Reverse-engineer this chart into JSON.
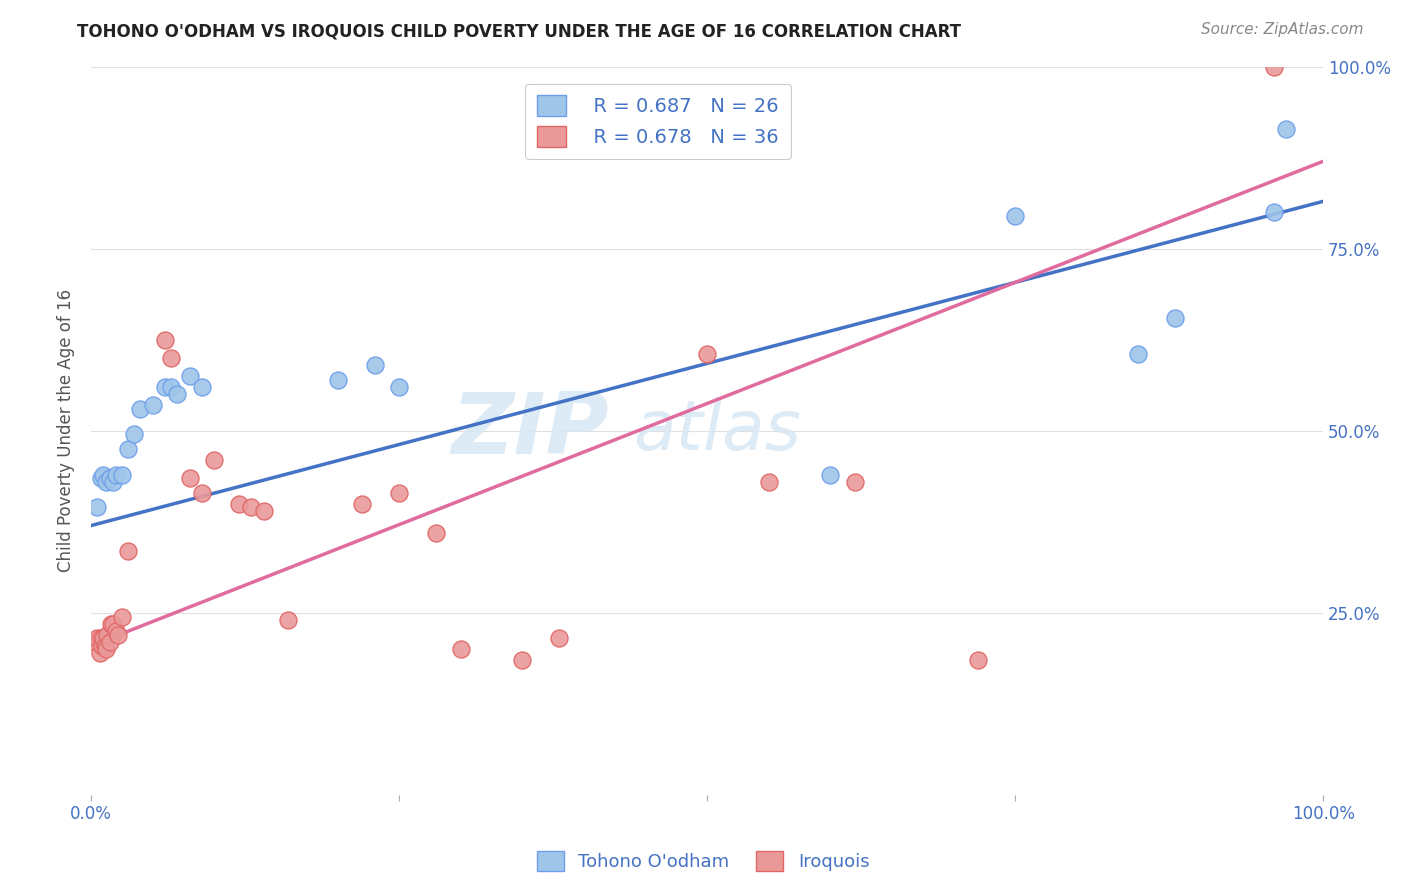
{
  "title": "TOHONO O'ODHAM VS IROQUOIS CHILD POVERTY UNDER THE AGE OF 16 CORRELATION CHART",
  "source": "Source: ZipAtlas.com",
  "ylabel": "Child Poverty Under the Age of 16",
  "xlim": [
    0,
    1
  ],
  "ylim": [
    0,
    1
  ],
  "legend_r1": "R = 0.687",
  "legend_n1": "N = 26",
  "legend_r2": "R = 0.678",
  "legend_n2": "N = 36",
  "color_blue": "#9FC5E8",
  "color_pink": "#EA9999",
  "color_blue_edge": "#6D9EEB",
  "color_pink_edge": "#E06666",
  "color_blue_line": "#4472C4",
  "color_pink_line": "#E06C9F",
  "color_text": "#4472C4",
  "watermark_text": "ZIP",
  "watermark_text2": "atlas",
  "tohono_x": [
    0.005,
    0.008,
    0.01,
    0.012,
    0.015,
    0.018,
    0.02,
    0.025,
    0.03,
    0.035,
    0.04,
    0.05,
    0.06,
    0.065,
    0.07,
    0.08,
    0.09,
    0.2,
    0.23,
    0.25,
    0.6,
    0.75,
    0.85,
    0.88,
    0.96,
    0.97
  ],
  "tohono_y": [
    0.395,
    0.435,
    0.44,
    0.43,
    0.435,
    0.43,
    0.44,
    0.44,
    0.475,
    0.495,
    0.53,
    0.535,
    0.56,
    0.56,
    0.55,
    0.575,
    0.56,
    0.57,
    0.59,
    0.56,
    0.44,
    0.795,
    0.605,
    0.655,
    0.8,
    0.915
  ],
  "iroquois_x": [
    0.003,
    0.005,
    0.007,
    0.008,
    0.009,
    0.01,
    0.011,
    0.012,
    0.013,
    0.015,
    0.016,
    0.018,
    0.02,
    0.022,
    0.025,
    0.03,
    0.06,
    0.065,
    0.08,
    0.09,
    0.1,
    0.12,
    0.13,
    0.14,
    0.16,
    0.22,
    0.25,
    0.28,
    0.3,
    0.35,
    0.38,
    0.5,
    0.55,
    0.62,
    0.72,
    0.96
  ],
  "iroquois_y": [
    0.21,
    0.215,
    0.195,
    0.215,
    0.205,
    0.215,
    0.205,
    0.2,
    0.22,
    0.21,
    0.235,
    0.235,
    0.225,
    0.22,
    0.245,
    0.335,
    0.625,
    0.6,
    0.435,
    0.415,
    0.46,
    0.4,
    0.395,
    0.39,
    0.24,
    0.4,
    0.415,
    0.36,
    0.2,
    0.185,
    0.215,
    0.605,
    0.43,
    0.43,
    0.185,
    1.0
  ],
  "blue_line_x0": 0.0,
  "blue_line_y0": 0.37,
  "blue_line_x1": 1.0,
  "blue_line_y1": 0.815,
  "pink_line_x0": 0.0,
  "pink_line_y0": 0.205,
  "pink_line_x1": 1.0,
  "pink_line_y1": 0.87,
  "background_color": "#ffffff",
  "grid_color": "#e0e0e0"
}
